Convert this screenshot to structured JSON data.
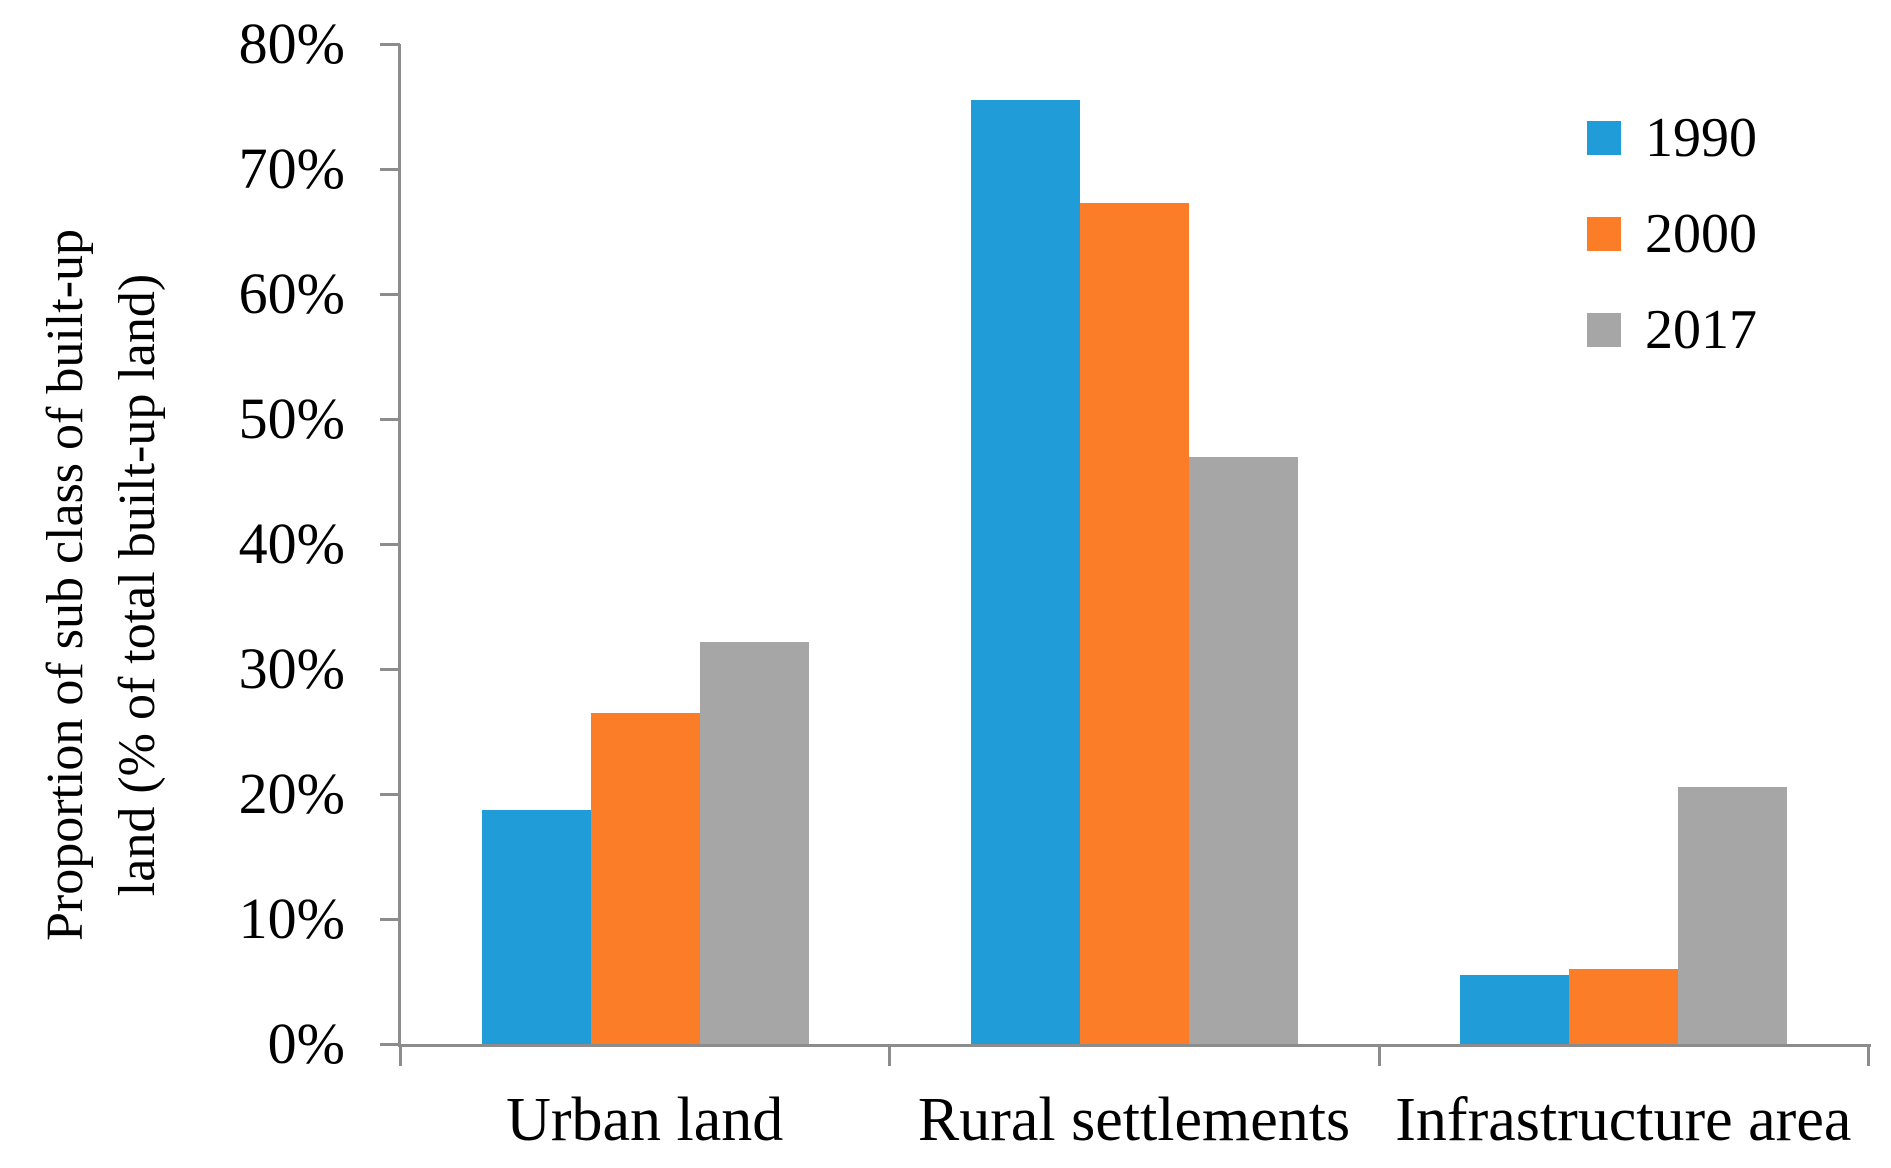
{
  "chart_data": {
    "type": "bar",
    "title": "",
    "categories": [
      "Urban land",
      "Rural settlements",
      "Infrastructure area"
    ],
    "series": [
      {
        "name": "1990",
        "color": "#209CD8",
        "values": [
          18.7,
          75.5,
          5.5
        ]
      },
      {
        "name": "2000",
        "color": "#FB7D27",
        "values": [
          26.5,
          67.3,
          6.0
        ]
      },
      {
        "name": "2017",
        "color": "#A6A6A6",
        "values": [
          32.2,
          47.0,
          20.6
        ]
      }
    ],
    "ylabel_line1": "Proportion of sub class of built-up",
    "ylabel_line2": "land (% of total built-up land)",
    "xlabel": "",
    "y_ticks": [
      "0%",
      "10%",
      "20%",
      "30%",
      "40%",
      "50%",
      "60%",
      "70%",
      "80%"
    ],
    "ylim": [
      0,
      80
    ],
    "grid": false,
    "legend_position": "top-right",
    "axis_color": "#8C8C8C",
    "text_color": "#000000"
  }
}
